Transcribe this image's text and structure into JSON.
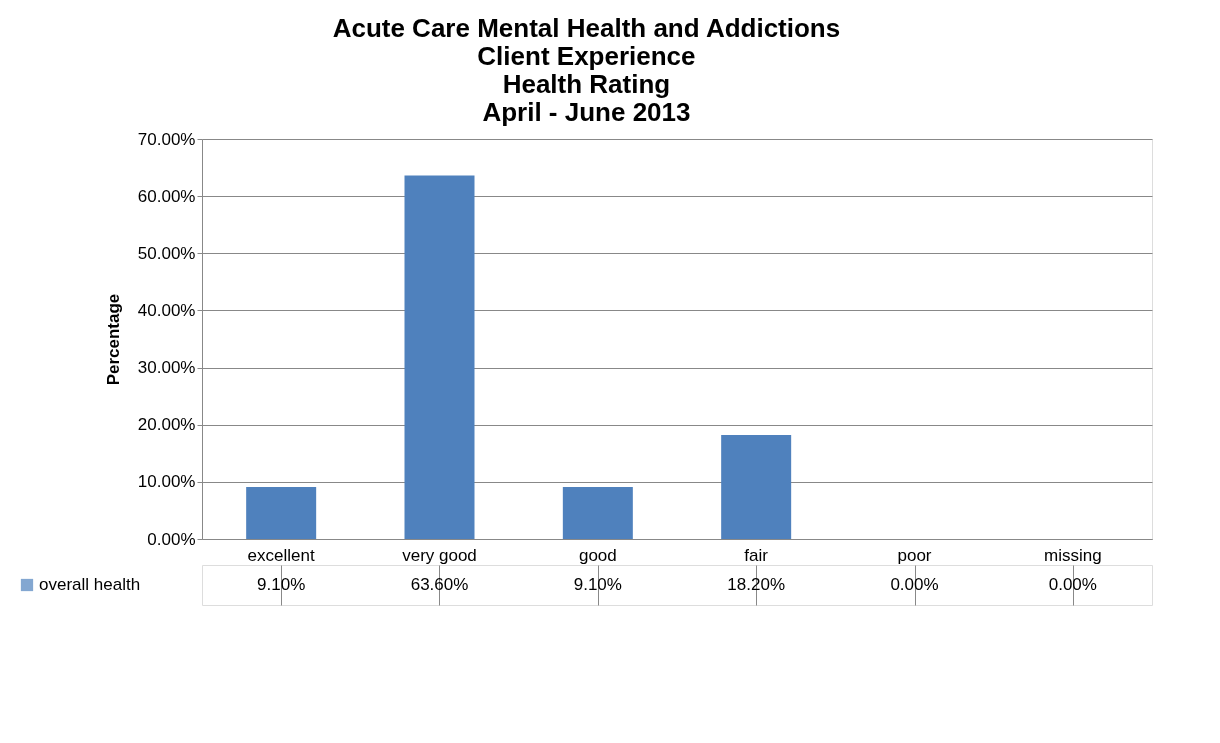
{
  "chart_data": {
    "type": "bar",
    "title": "Acute Care Mental Health and Addictions\nClient Experience\nHealth Rating\nApril - June 2013",
    "ylabel": "Percentage",
    "categories": [
      "excellent",
      "very good",
      "good",
      "fair",
      "poor",
      "missing"
    ],
    "series": [
      {
        "name": "overall health",
        "color": "#4f81bd",
        "values": [
          9.1,
          63.6,
          9.1,
          18.2,
          0,
          0
        ],
        "value_labels": [
          "9.10%",
          "63.60%",
          "9.10%",
          "18.20%",
          "0.00%",
          "0.00%"
        ]
      }
    ],
    "ylim": [
      0,
      70
    ],
    "yticks": [
      {
        "value": 0,
        "label": "0.00%"
      },
      {
        "value": 10,
        "label": "10.00%"
      },
      {
        "value": 20,
        "label": "20.00%"
      },
      {
        "value": 30,
        "label": "30.00%"
      },
      {
        "value": 40,
        "label": "40.00%"
      },
      {
        "value": 50,
        "label": "50.00%"
      },
      {
        "value": 60,
        "label": "60.00%"
      },
      {
        "value": 70,
        "label": "70.00%"
      }
    ],
    "grid": "y",
    "legend": "bottom left"
  }
}
